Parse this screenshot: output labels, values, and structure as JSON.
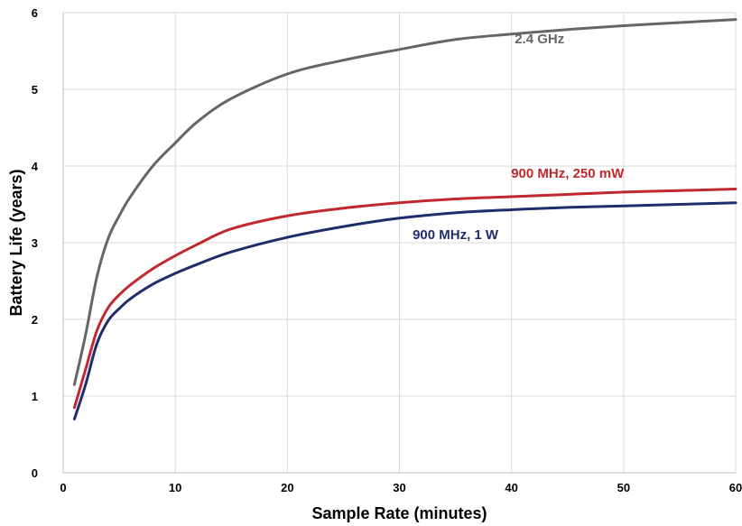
{
  "chart_data": {
    "type": "line",
    "title": "",
    "xlabel": "Sample Rate (minutes)",
    "ylabel": "Battery Life (years)",
    "xlim": [
      0,
      60
    ],
    "ylim": [
      0,
      6
    ],
    "xticks": [
      0,
      10,
      20,
      30,
      40,
      50,
      60
    ],
    "yticks": [
      0,
      1,
      2,
      3,
      4,
      5,
      6
    ],
    "grid": true,
    "legend": "inline labels",
    "series": [
      {
        "name": "2.4 GHz",
        "color": "#666666",
        "x": [
          1,
          2,
          3,
          4,
          5,
          6,
          8,
          10,
          12,
          15,
          20,
          25,
          30,
          35,
          40,
          45,
          50,
          55,
          60
        ],
        "y": [
          1.15,
          1.8,
          2.55,
          3.05,
          3.35,
          3.6,
          4.0,
          4.3,
          4.58,
          4.88,
          5.2,
          5.38,
          5.52,
          5.65,
          5.72,
          5.78,
          5.83,
          5.87,
          5.91
        ]
      },
      {
        "name": "900 MHz, 250 mW",
        "color": "#c0282d",
        "x": [
          1,
          2,
          3,
          4,
          5,
          6,
          8,
          10,
          12,
          15,
          20,
          25,
          30,
          35,
          40,
          45,
          50,
          55,
          60
        ],
        "y": [
          0.85,
          1.35,
          1.85,
          2.15,
          2.32,
          2.45,
          2.66,
          2.83,
          2.98,
          3.18,
          3.35,
          3.45,
          3.52,
          3.57,
          3.6,
          3.63,
          3.66,
          3.68,
          3.7
        ]
      },
      {
        "name": "900 MHz, 1 W",
        "color": "#1f2d6b",
        "x": [
          1,
          2,
          3,
          4,
          5,
          6,
          8,
          10,
          12,
          15,
          20,
          25,
          30,
          35,
          40,
          45,
          50,
          55,
          60
        ],
        "y": [
          0.7,
          1.15,
          1.68,
          1.98,
          2.14,
          2.27,
          2.46,
          2.6,
          2.72,
          2.88,
          3.07,
          3.21,
          3.32,
          3.39,
          3.43,
          3.46,
          3.48,
          3.5,
          3.52
        ]
      }
    ]
  }
}
